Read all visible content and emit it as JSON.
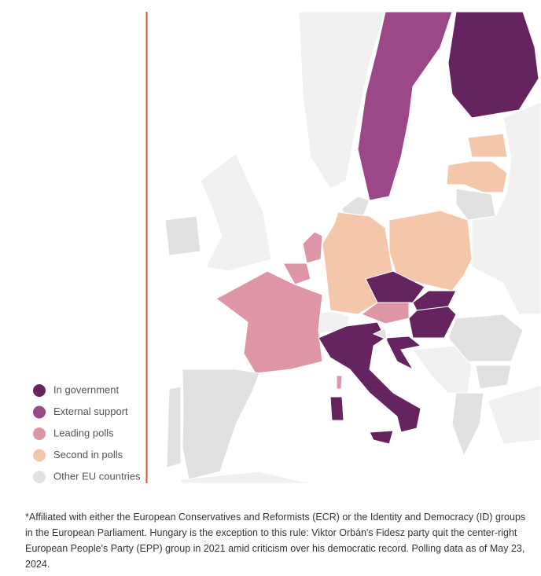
{
  "legend": {
    "items": [
      {
        "label": "In government",
        "color": "#65235f"
      },
      {
        "label": "External support",
        "color": "#9b4788"
      },
      {
        "label": "Leading polls",
        "color": "#de96a6"
      },
      {
        "label": "Second in polls",
        "color": "#f5c7aa"
      },
      {
        "label": "Other EU countries",
        "color": "#e1e1e1"
      }
    ]
  },
  "footnote": "*Affiliated with either the European Conservatives and Reformists (ECR) or the Identity and Democracy (ID) groups in the European Parliament. Hungary is the exception to this rule: Viktor Orbán's Fidesz party quit the center-right European People's Party (EPP) group in 2021 amid criticism over his democratic record. Polling data as of May 23, 2024."
}
